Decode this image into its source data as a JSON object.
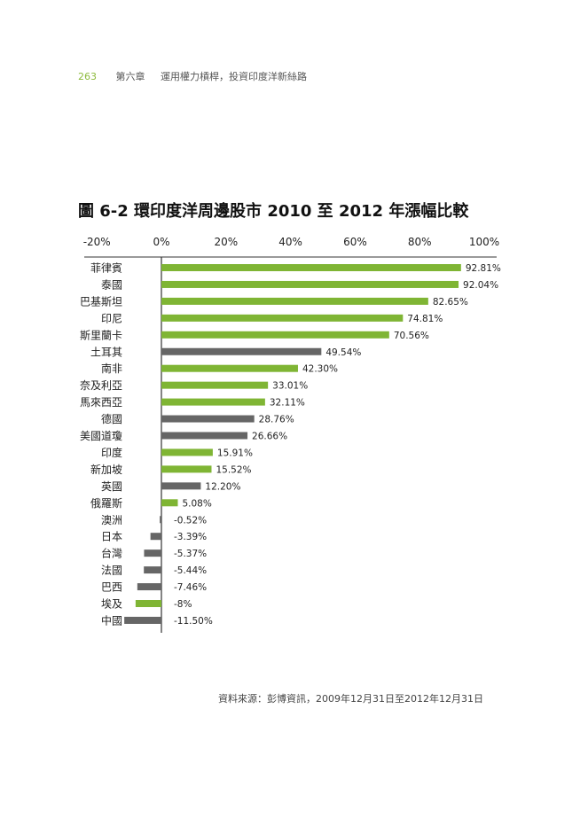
{
  "header": {
    "page_number": "263",
    "chapter": "第六章",
    "chapter_title": "運用權力槓桿，投資印度洋新絲路"
  },
  "figure": {
    "title": "圖 6-2 環印度洋周邊股市 2010 至 2012 年漲幅比較",
    "source": "資料來源：彭博資訊，2009年12月31日至2012年12月31日"
  },
  "colors": {
    "green": "#7fb534",
    "gray": "#666666",
    "axis": "#333333"
  },
  "chart_data": {
    "type": "bar",
    "orientation": "horizontal",
    "title": "圖 6-2 環印度洋周邊股市 2010 至 2012 年漲幅比較",
    "xlim": [
      -20,
      100
    ],
    "x_ticks": [
      "-20%",
      "0%",
      "20%",
      "40%",
      "60%",
      "80%",
      "100%"
    ],
    "x_tick_values": [
      -20,
      0,
      20,
      40,
      60,
      80,
      100
    ],
    "x_axis_position": "top",
    "grid": false,
    "categories": [
      "菲律賓",
      "泰國",
      "巴基斯坦",
      "印尼",
      "斯里蘭卡",
      "土耳其",
      "南非",
      "奈及利亞",
      "馬來西亞",
      "德國",
      "美國道瓊",
      "印度",
      "新加坡",
      "英國",
      "俄羅斯",
      "澳洲",
      "日本",
      "台灣",
      "法國",
      "巴西",
      "埃及",
      "中國"
    ],
    "values": [
      92.81,
      92.04,
      82.65,
      74.81,
      70.56,
      49.54,
      42.3,
      33.01,
      32.11,
      28.76,
      26.66,
      15.91,
      15.52,
      12.2,
      5.08,
      -0.52,
      -3.39,
      -5.37,
      -5.44,
      -7.46,
      -8,
      -11.5
    ],
    "value_labels": [
      "92.81%",
      "92.04%",
      "82.65%",
      "74.81%",
      "70.56%",
      "49.54%",
      "42.30%",
      "33.01%",
      "32.11%",
      "28.76%",
      "26.66%",
      "15.91%",
      "15.52%",
      "12.20%",
      "5.08%",
      "-0.52%",
      "-3.39%",
      "-5.37%",
      "-5.44%",
      "-7.46%",
      "-8%",
      "-11.50%"
    ],
    "bar_colors": [
      "green",
      "green",
      "green",
      "green",
      "green",
      "gray",
      "green",
      "green",
      "green",
      "gray",
      "gray",
      "green",
      "green",
      "gray",
      "green",
      "gray",
      "gray",
      "gray",
      "gray",
      "gray",
      "green",
      "gray"
    ]
  }
}
